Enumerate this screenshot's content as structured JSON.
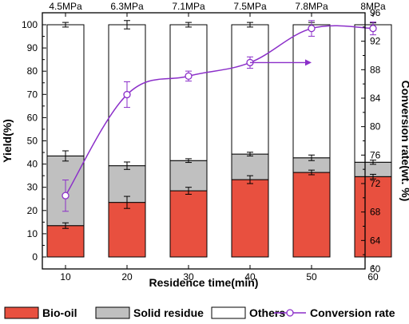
{
  "chart_data": {
    "type": "bar",
    "stacked": true,
    "categories": [
      "10",
      "20",
      "30",
      "40",
      "50",
      "60"
    ],
    "top_labels": [
      "4.5MPa",
      "6.3MPa",
      "7.1MPa",
      "7.5MPa",
      "7.8MPa",
      "8MPa"
    ],
    "xlabel": "Residence time(min)",
    "ylabel_left": "Yield(%)",
    "ylabel_right": "Conversion rate(wt. %)",
    "ylim_left": [
      0,
      100
    ],
    "ylim_right": [
      60,
      96
    ],
    "left_ticks": [
      0,
      10,
      20,
      30,
      40,
      50,
      60,
      70,
      80,
      90,
      100
    ],
    "right_ticks": [
      60,
      64,
      68,
      72,
      76,
      80,
      84,
      88,
      92,
      96
    ],
    "series": [
      {
        "name": "Bio-oil",
        "color": "#e8503f",
        "values": [
          13.5,
          23.5,
          28.5,
          33.3,
          36.4,
          34.6
        ],
        "errors": [
          1.2,
          2.6,
          1.5,
          1.7,
          1.0,
          1.0
        ]
      },
      {
        "name": "Solid residue",
        "color": "#c0c0c0",
        "values": [
          30.0,
          15.8,
          13.0,
          11.0,
          6.3,
          6.2
        ],
        "errors": [
          2.2,
          1.6,
          0.8,
          0.8,
          1.2,
          0.9
        ]
      },
      {
        "name": "Others",
        "color": "#ffffff",
        "values": [
          56.5,
          60.7,
          58.5,
          55.7,
          57.3,
          59.2
        ],
        "errors": [
          1.0,
          1.8,
          1.0,
          1.0,
          1.0,
          0.8
        ]
      }
    ],
    "line_series": {
      "name": "Conversion rate",
      "color": "#8b2fc9",
      "axis": "right",
      "x": [
        10,
        20,
        30,
        40,
        50,
        60
      ],
      "values": [
        70.3,
        84.5,
        87.1,
        89.0,
        93.8,
        93.8
      ],
      "errors": [
        2.2,
        1.8,
        0.7,
        0.8,
        1.1,
        0.9
      ]
    },
    "annotation_arrow": {
      "from_x": 40,
      "to_x": 50,
      "y_right": 89.0
    },
    "legend": [
      "Bio-oil",
      "Solid residue",
      "Others",
      "Conversion rate"
    ],
    "legend_position": "bottom"
  }
}
